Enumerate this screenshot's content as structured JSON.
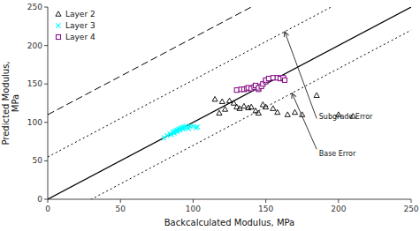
{
  "chart_data": {
    "type": "scatter",
    "xlabel": "Backcalculated Modulus, MPa",
    "ylabel": "Predicted Modulus,\nMPa",
    "xlim": [
      0,
      250
    ],
    "ylim": [
      0,
      250
    ],
    "xticks": [
      0,
      50,
      100,
      150,
      200,
      250
    ],
    "yticks": [
      0,
      50,
      100,
      150,
      200,
      250
    ],
    "grid": false,
    "legend": "upper left",
    "series": [
      {
        "name": "Layer 2",
        "color": "black",
        "marker": "triangle",
        "x": [
          115,
          118,
          120,
          122,
          125,
          128,
          130,
          132,
          135,
          138,
          140,
          143,
          145,
          148,
          150,
          155,
          158,
          165,
          170,
          175,
          185,
          200,
          210
        ],
        "values": [
          130,
          112,
          127,
          117,
          128,
          125,
          120,
          118,
          121,
          119,
          120,
          115,
          112,
          123,
          120,
          118,
          113,
          110,
          113,
          110,
          135,
          110,
          108
        ]
      },
      {
        "name": "Layer 3",
        "color": "cyan",
        "marker": "x",
        "x": [
          80,
          82,
          84,
          85,
          86,
          87,
          87,
          88,
          89,
          89,
          90,
          91,
          91,
          92,
          93,
          93,
          94,
          95,
          96,
          97,
          98,
          100,
          102,
          103
        ],
        "values": [
          80,
          83,
          85,
          84,
          87,
          86,
          88,
          89,
          90,
          88,
          91,
          90,
          92,
          93,
          93,
          91,
          94,
          95,
          93,
          92,
          95,
          95,
          93,
          94
        ]
      },
      {
        "name": "Layer 4",
        "color": "purple",
        "marker": "square",
        "x": [
          130,
          133,
          135,
          137,
          138,
          140,
          142,
          143,
          145,
          145,
          147,
          148,
          150,
          150,
          152,
          155,
          158,
          160,
          162,
          163
        ],
        "values": [
          142,
          143,
          143,
          144,
          145,
          144,
          146,
          148,
          143,
          145,
          147,
          150,
          153,
          155,
          157,
          158,
          158,
          157,
          158,
          155
        ]
      }
    ],
    "reference_lines": [
      {
        "offset": 0,
        "line_style": "solid",
        "color": "black"
      },
      {
        "offset": 110,
        "line_style": "dashed",
        "color": "black"
      },
      {
        "offset": 55,
        "line_style": "dotted",
        "color": "black"
      },
      {
        "offset": -30,
        "line_style": "dotted",
        "color": "black"
      }
    ],
    "annotations": [
      {
        "text": "Subgrade Error",
        "x": 186,
        "y": 108,
        "arrow_from": [
          185,
          105
        ],
        "arrow_to": [
          163,
          218
        ]
      },
      {
        "text": "Base Error",
        "x": 186,
        "y": 60,
        "arrow_from": [
          185,
          65
        ],
        "arrow_to": [
          168,
          138
        ]
      }
    ]
  }
}
